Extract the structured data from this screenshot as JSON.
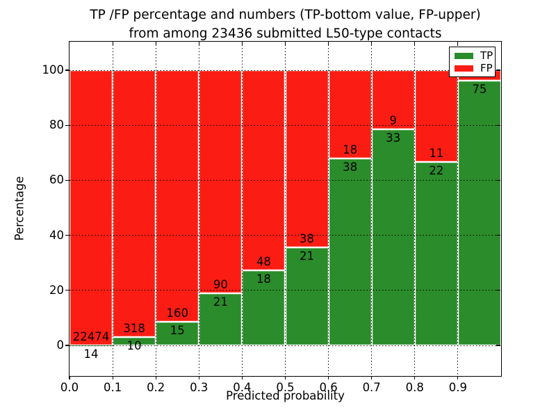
{
  "header": {
    "line1": "TP /FP percentage and numbers (TP-bottom value, FP-upper)",
    "line2": "from among 23436 submitted L50-type contacts"
  },
  "chart_data": {
    "type": "bar",
    "stacked": true,
    "title": "TP /FP percentage and numbers (TP-bottom value, FP-upper) from among 23436 submitted L50-type contacts",
    "xlabel": "Predicted probability",
    "ylabel": "Percentage",
    "xlim": [
      0.0,
      1.0
    ],
    "ylim": [
      -11,
      110
    ],
    "bin_width": 0.1,
    "grid": true,
    "grid_style": "dotted",
    "legend_position": "upper right",
    "categories": [
      "0.0-0.1",
      "0.1-0.2",
      "0.2-0.3",
      "0.3-0.4",
      "0.4-0.5",
      "0.5-0.6",
      "0.6-0.7",
      "0.7-0.8",
      "0.8-0.9",
      "0.9-1.0"
    ],
    "xtick_labels": [
      "0.0",
      "0.1",
      "0.2",
      "0.3",
      "0.4",
      "0.5",
      "0.6",
      "0.7",
      "0.8",
      "0.9"
    ],
    "ytick_labels": [
      "0",
      "20",
      "40",
      "60",
      "80",
      "100"
    ],
    "series": [
      {
        "name": "TP",
        "color": "#2a8c2a",
        "position": "bottom",
        "counts": [
          14,
          10,
          15,
          21,
          18,
          21,
          38,
          33,
          22,
          75
        ],
        "pct": [
          0.06,
          3.05,
          8.57,
          18.92,
          27.27,
          35.59,
          67.86,
          78.57,
          66.67,
          96.2
        ],
        "count_labels": [
          "14",
          "10",
          "15",
          "21",
          "18",
          "21",
          "38",
          "33",
          "22",
          "75"
        ]
      },
      {
        "name": "FP",
        "color": "#fb1d13",
        "position": "top",
        "counts": [
          22474,
          318,
          160,
          90,
          48,
          38,
          18,
          9,
          11,
          null
        ],
        "pct": [
          99.94,
          96.95,
          91.43,
          81.08,
          72.73,
          64.41,
          32.14,
          21.43,
          33.33,
          3.8
        ],
        "count_labels": [
          "22474",
          "318",
          "160",
          "90",
          "48",
          "38",
          "18",
          "9",
          "11",
          ""
        ]
      }
    ]
  }
}
